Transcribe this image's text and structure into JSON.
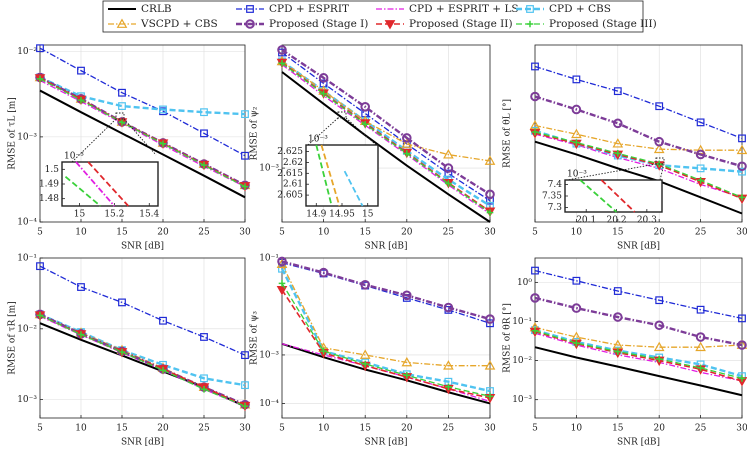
{
  "legend": [
    {
      "name": "CRLB",
      "color": "#000000",
      "dash": "solid",
      "marker": "none",
      "width": 2
    },
    {
      "name": "CPD + ESPRIT",
      "color": "#1f2ad6",
      "dash": "dashdot",
      "marker": "square",
      "width": 1.3
    },
    {
      "name": "CPD + ESPRIT + LS",
      "color": "#e21ee2",
      "dash": "dashdot",
      "marker": "none",
      "width": 1.3
    },
    {
      "name": "CPD + CBS",
      "color": "#4fc3f0",
      "dash": "dashed",
      "marker": "square",
      "width": 2.4
    },
    {
      "name": "VSCPD + CBS",
      "color": "#e6a62a",
      "dash": "dashdot",
      "marker": "triangle-up",
      "width": 1.3
    },
    {
      "name": "Proposed (Stage I)",
      "color": "#7d3c98",
      "dash": "dashdot",
      "marker": "circle",
      "width": 2.4
    },
    {
      "name": "Proposed (Stage II)",
      "color": "#e0282c",
      "dash": "dashed",
      "marker": "triangle-down",
      "width": 1.6
    },
    {
      "name": "Proposed (Stage III)",
      "color": "#3ad13a",
      "dash": "dashed",
      "marker": "plus",
      "width": 1.3
    }
  ],
  "chart_data": [
    {
      "type": "line",
      "ylabel": "RMSE of τL [m]",
      "xlabel": "SNR [dB]",
      "x": [
        5,
        10,
        15,
        20,
        25,
        30
      ],
      "xlim": [
        5,
        30
      ],
      "xticks": [
        5,
        10,
        15,
        20,
        25,
        30
      ],
      "ylim": [
        0.0001,
        0.012
      ],
      "log_y": true,
      "grid": true,
      "yticks": [
        {
          "value": 0.0001,
          "label": "10⁻⁴"
        },
        {
          "value": 0.001,
          "label": "10⁻³"
        },
        {
          "value": 0.01,
          "label": "10⁻²"
        }
      ],
      "series": [
        {
          "values": [
            0.0035,
            0.00195,
            0.0011,
            0.00062,
            0.00035,
            0.000195
          ]
        },
        {
          "values": [
            0.011,
            0.006,
            0.0033,
            0.002,
            0.0011,
            0.0006
          ]
        },
        {
          "values": [
            0.0046,
            0.0026,
            0.00145,
            0.0008,
            0.00045,
            0.00026
          ]
        },
        {
          "values": [
            0.005,
            0.003,
            0.0023,
            0.0021,
            0.00195,
            0.00185
          ]
        },
        {
          "values": [
            0.005,
            0.0028,
            0.0015,
            0.00085,
            0.00048,
            0.00027
          ]
        },
        {
          "values": [
            0.005,
            0.0028,
            0.0015,
            0.00085,
            0.00048,
            0.00027
          ]
        },
        {
          "values": [
            0.0049,
            0.00275,
            0.00149,
            0.00084,
            0.00047,
            0.000265
          ]
        },
        {
          "values": [
            0.0048,
            0.0027,
            0.00148,
            0.00083,
            0.000465,
            0.00026
          ]
        }
      ],
      "inset": {
        "scale": "10⁻³",
        "xlim": [
          14.9,
          15.45
        ],
        "ylim": [
          1.475,
          1.505
        ],
        "xticks": [
          15,
          15.2,
          15.4
        ],
        "yticks": [
          1.48,
          1.49,
          1.5
        ],
        "series": [
          {
            "color": "#e21ee2",
            "dash": "dashdot",
            "x": [
              14.98,
              15.2
            ],
            "values": [
              1.505,
              1.475
            ]
          },
          {
            "color": "#e0282c",
            "dash": "dashed",
            "x": [
              15.05,
              15.28
            ],
            "values": [
              1.505,
              1.475
            ]
          },
          {
            "color": "#3ad13a",
            "dash": "dashed",
            "x": [
              14.92,
              15.12
            ],
            "values": [
              1.495,
              1.475
            ]
          }
        ]
      }
    },
    {
      "type": "line",
      "ylabel": "RMSE of ψ₂",
      "xlabel": "SNR [dB]",
      "x": [
        5,
        10,
        15,
        20,
        25,
        30
      ],
      "xlim": [
        5,
        30
      ],
      "xticks": [
        5,
        10,
        15,
        20,
        25,
        30
      ],
      "ylim": [
        0.00035,
        0.011
      ],
      "log_y": true,
      "grid": true,
      "yticks": [
        {
          "value": 0.001,
          "label": "10⁻³"
        }
      ],
      "series": [
        {
          "values": [
            0.0065,
            0.0035,
            0.0019,
            0.00105,
            0.0006,
            0.00035
          ]
        },
        {
          "values": [
            0.0095,
            0.0052,
            0.0029,
            0.0016,
            0.0009,
            0.00053
          ]
        },
        {
          "values": [
            0.0075,
            0.0041,
            0.0023,
            0.0013,
            0.00072,
            0.00041
          ]
        },
        {
          "values": [
            0.008,
            0.0045,
            0.0025,
            0.0014,
            0.0008,
            0.00048
          ]
        },
        {
          "values": [
            0.008,
            0.0045,
            0.0025,
            0.0016,
            0.0013,
            0.00115
          ]
        },
        {
          "values": [
            0.01,
            0.0058,
            0.0033,
            0.0018,
            0.001,
            0.0006
          ]
        },
        {
          "values": [
            0.0078,
            0.0043,
            0.0024,
            0.00135,
            0.00075,
            0.00043
          ]
        },
        {
          "values": [
            0.0077,
            0.00425,
            0.00235,
            0.00133,
            0.00074,
            0.00042
          ]
        }
      ],
      "inset": {
        "scale": "10⁻³",
        "xlim": [
          14.88,
          15.02
        ],
        "ylim": [
          2.6,
          2.628
        ],
        "xticks": [
          14.9,
          14.95,
          15
        ],
        "yticks": [
          2.605,
          2.61,
          2.615,
          2.62,
          2.625
        ],
        "series": [
          {
            "color": "#3ad13a",
            "dash": "dashed",
            "x": [
              14.9,
              14.93
            ],
            "values": [
              2.628,
              2.6
            ]
          },
          {
            "color": "#e6a62a",
            "dash": "dashed",
            "x": [
              14.91,
              14.945
            ],
            "values": [
              2.628,
              2.6
            ]
          },
          {
            "color": "#4fc3f0",
            "dash": "dashed",
            "x": [
              14.955,
              14.99
            ],
            "values": [
              2.616,
              2.6
            ]
          }
        ]
      }
    },
    {
      "type": "line",
      "ylabel": "RMSE of θL [°]",
      "xlabel": "SNR [dB]",
      "x": [
        5,
        10,
        15,
        20,
        25,
        30
      ],
      "xlim": [
        5,
        30
      ],
      "xticks": [
        5,
        10,
        15,
        20,
        25,
        30
      ],
      "ylim": [
        0.0016,
        0.185
      ],
      "log_y": true,
      "grid": true,
      "series": [
        {
          "values": [
            0.0138,
            0.0098,
            0.00675,
            0.00478,
            0.0031,
            0.00201
          ]
        },
        {
          "values": [
            0.104,
            0.0735,
            0.0536,
            0.0358,
            0.0232,
            0.0151
          ]
        },
        {
          "values": [
            0.0169,
            0.0127,
            0.009,
            0.00675,
            0.00438,
            0.0031
          ]
        },
        {
          "values": [
            0.0185,
            0.0131,
            0.00952,
            0.00735,
            0.00675,
            0.00618
          ]
        },
        {
          "values": [
            0.0213,
            0.0169,
            0.0131,
            0.0113,
            0.011,
            0.011
          ]
        },
        {
          "values": [
            0.0464,
            0.0328,
            0.0226,
            0.0138,
            0.0098,
            0.00714
          ]
        },
        {
          "values": [
            0.0174,
            0.0131,
            0.0098,
            0.00735,
            0.0047,
            0.003
          ]
        },
        {
          "values": [
            0.0179,
            0.0135,
            0.0101,
            0.0076,
            0.0049,
            0.0031
          ]
        }
      ],
      "inset": {
        "scale": "10⁻³",
        "xlim": [
          20.03,
          20.35
        ],
        "ylim": [
          7.28,
          7.42
        ],
        "xticks": [
          20.1,
          20.2,
          20.3
        ],
        "yticks": [
          7.3,
          7.35,
          7.4
        ],
        "series": [
          {
            "color": "#e0282c",
            "dash": "dashed",
            "x": [
              20.15,
              20.26
            ],
            "values": [
              7.42,
              7.28
            ]
          },
          {
            "color": "#3ad13a",
            "dash": "dashed",
            "x": [
              20.08,
              20.2
            ],
            "values": [
              7.42,
              7.28
            ]
          }
        ]
      }
    },
    {
      "type": "line",
      "ylabel": "RMSE of τR [m]",
      "xlabel": "SNR [dB]",
      "x": [
        5,
        10,
        15,
        20,
        25,
        30
      ],
      "xlim": [
        5,
        30
      ],
      "xticks": [
        5,
        10,
        15,
        20,
        25,
        30
      ],
      "ylim": [
        0.00055,
        0.1
      ],
      "log_y": true,
      "grid": true,
      "yticks": [
        {
          "value": 0.001,
          "label": "10⁻³"
        },
        {
          "value": 0.01,
          "label": "10⁻²"
        },
        {
          "value": 0.1,
          "label": "10⁻¹"
        }
      ],
      "series": [
        {
          "values": [
            0.012,
            0.007,
            0.0042,
            0.0025,
            0.0015,
            0.0008
          ]
        },
        {
          "values": [
            0.0767,
            0.0389,
            0.0236,
            0.013,
            0.00767,
            0.00425
          ]
        },
        {
          "values": [
            0.015,
            0.0082,
            0.0046,
            0.0026,
            0.0014,
            0.0008
          ]
        },
        {
          "values": [
            0.016,
            0.009,
            0.005,
            0.0031,
            0.002,
            0.0016
          ]
        },
        {
          "values": [
            0.016,
            0.0088,
            0.005,
            0.0028,
            0.0015,
            0.00085
          ]
        },
        {
          "values": [
            0.016,
            0.0085,
            0.0048,
            0.0027,
            0.0015,
            0.00085
          ]
        },
        {
          "values": [
            0.0155,
            0.0084,
            0.0047,
            0.0027,
            0.0015,
            0.00082
          ]
        },
        {
          "values": [
            0.0155,
            0.0083,
            0.0047,
            0.0026,
            0.0014,
            0.00081
          ]
        }
      ]
    },
    {
      "type": "line",
      "ylabel": "RMSE of ψ₃",
      "xlabel": "SNR [dB]",
      "x": [
        5,
        10,
        15,
        20,
        25,
        30
      ],
      "xlim": [
        5,
        30
      ],
      "xticks": [
        5,
        10,
        15,
        20,
        25,
        30
      ],
      "ylim": [
        5e-05,
        0.1
      ],
      "log_y": true,
      "grid": true,
      "yticks": [
        {
          "value": 0.0001,
          "label": "10⁻⁴"
        },
        {
          "value": 0.001,
          "label": "10⁻³"
        },
        {
          "value": 0.1,
          "label": "10⁻¹"
        }
      ],
      "series": [
        {
          "values": [
            0.0017,
            0.0009,
            0.0005,
            0.0003,
            0.00017,
            0.0001
          ]
        },
        {
          "values": [
            0.08,
            0.048,
            0.027,
            0.015,
            0.0085,
            0.0045
          ]
        },
        {
          "values": [
            0.0017,
            0.001,
            0.0006,
            0.00035,
            0.0002,
            0.00011
          ]
        },
        {
          "values": [
            0.06,
            0.0012,
            0.0007,
            0.0004,
            0.00028,
            0.00018
          ]
        },
        {
          "values": [
            0.075,
            0.0014,
            0.001,
            0.0007,
            0.0006,
            0.0006
          ]
        },
        {
          "values": [
            0.085,
            0.05,
            0.028,
            0.017,
            0.0095,
            0.0055
          ]
        },
        {
          "values": [
            0.022,
            0.0011,
            0.0006,
            0.00035,
            0.0002,
            0.00013
          ]
        },
        {
          "values": [
            0.03,
            0.0012,
            0.00065,
            0.00038,
            0.00022,
            0.00014
          ]
        }
      ]
    },
    {
      "type": "line",
      "ylabel": "RMSE of θR [°]",
      "xlabel": "SNR [dB]",
      "x": [
        5,
        10,
        15,
        20,
        25,
        30
      ],
      "xlim": [
        5,
        30
      ],
      "xticks": [
        5,
        10,
        15,
        20,
        25,
        30
      ],
      "ylim": [
        0.00034,
        4.2
      ],
      "log_y": true,
      "grid": true,
      "yticks": [
        {
          "value": 0.001,
          "label": "10⁻³"
        },
        {
          "value": 0.01,
          "label": "10⁻²"
        },
        {
          "value": 0.1,
          "label": "10⁻¹"
        },
        {
          "value": 1,
          "label": "10⁰"
        }
      ],
      "series": [
        {
          "values": [
            0.022,
            0.012,
            0.007,
            0.004,
            0.0023,
            0.0013
          ]
        },
        {
          "values": [
            2,
            1.1,
            0.6,
            0.35,
            0.2,
            0.12
          ]
        },
        {
          "values": [
            0.05,
            0.025,
            0.014,
            0.009,
            0.005,
            0.003
          ]
        },
        {
          "values": [
            0.06,
            0.03,
            0.018,
            0.012,
            0.008,
            0.004
          ]
        },
        {
          "values": [
            0.07,
            0.04,
            0.025,
            0.022,
            0.022,
            0.025
          ]
        },
        {
          "values": [
            0.4,
            0.22,
            0.13,
            0.08,
            0.04,
            0.025
          ]
        },
        {
          "values": [
            0.055,
            0.027,
            0.016,
            0.01,
            0.006,
            0.003
          ]
        },
        {
          "values": [
            0.058,
            0.028,
            0.017,
            0.011,
            0.0065,
            0.0035
          ]
        }
      ]
    }
  ]
}
